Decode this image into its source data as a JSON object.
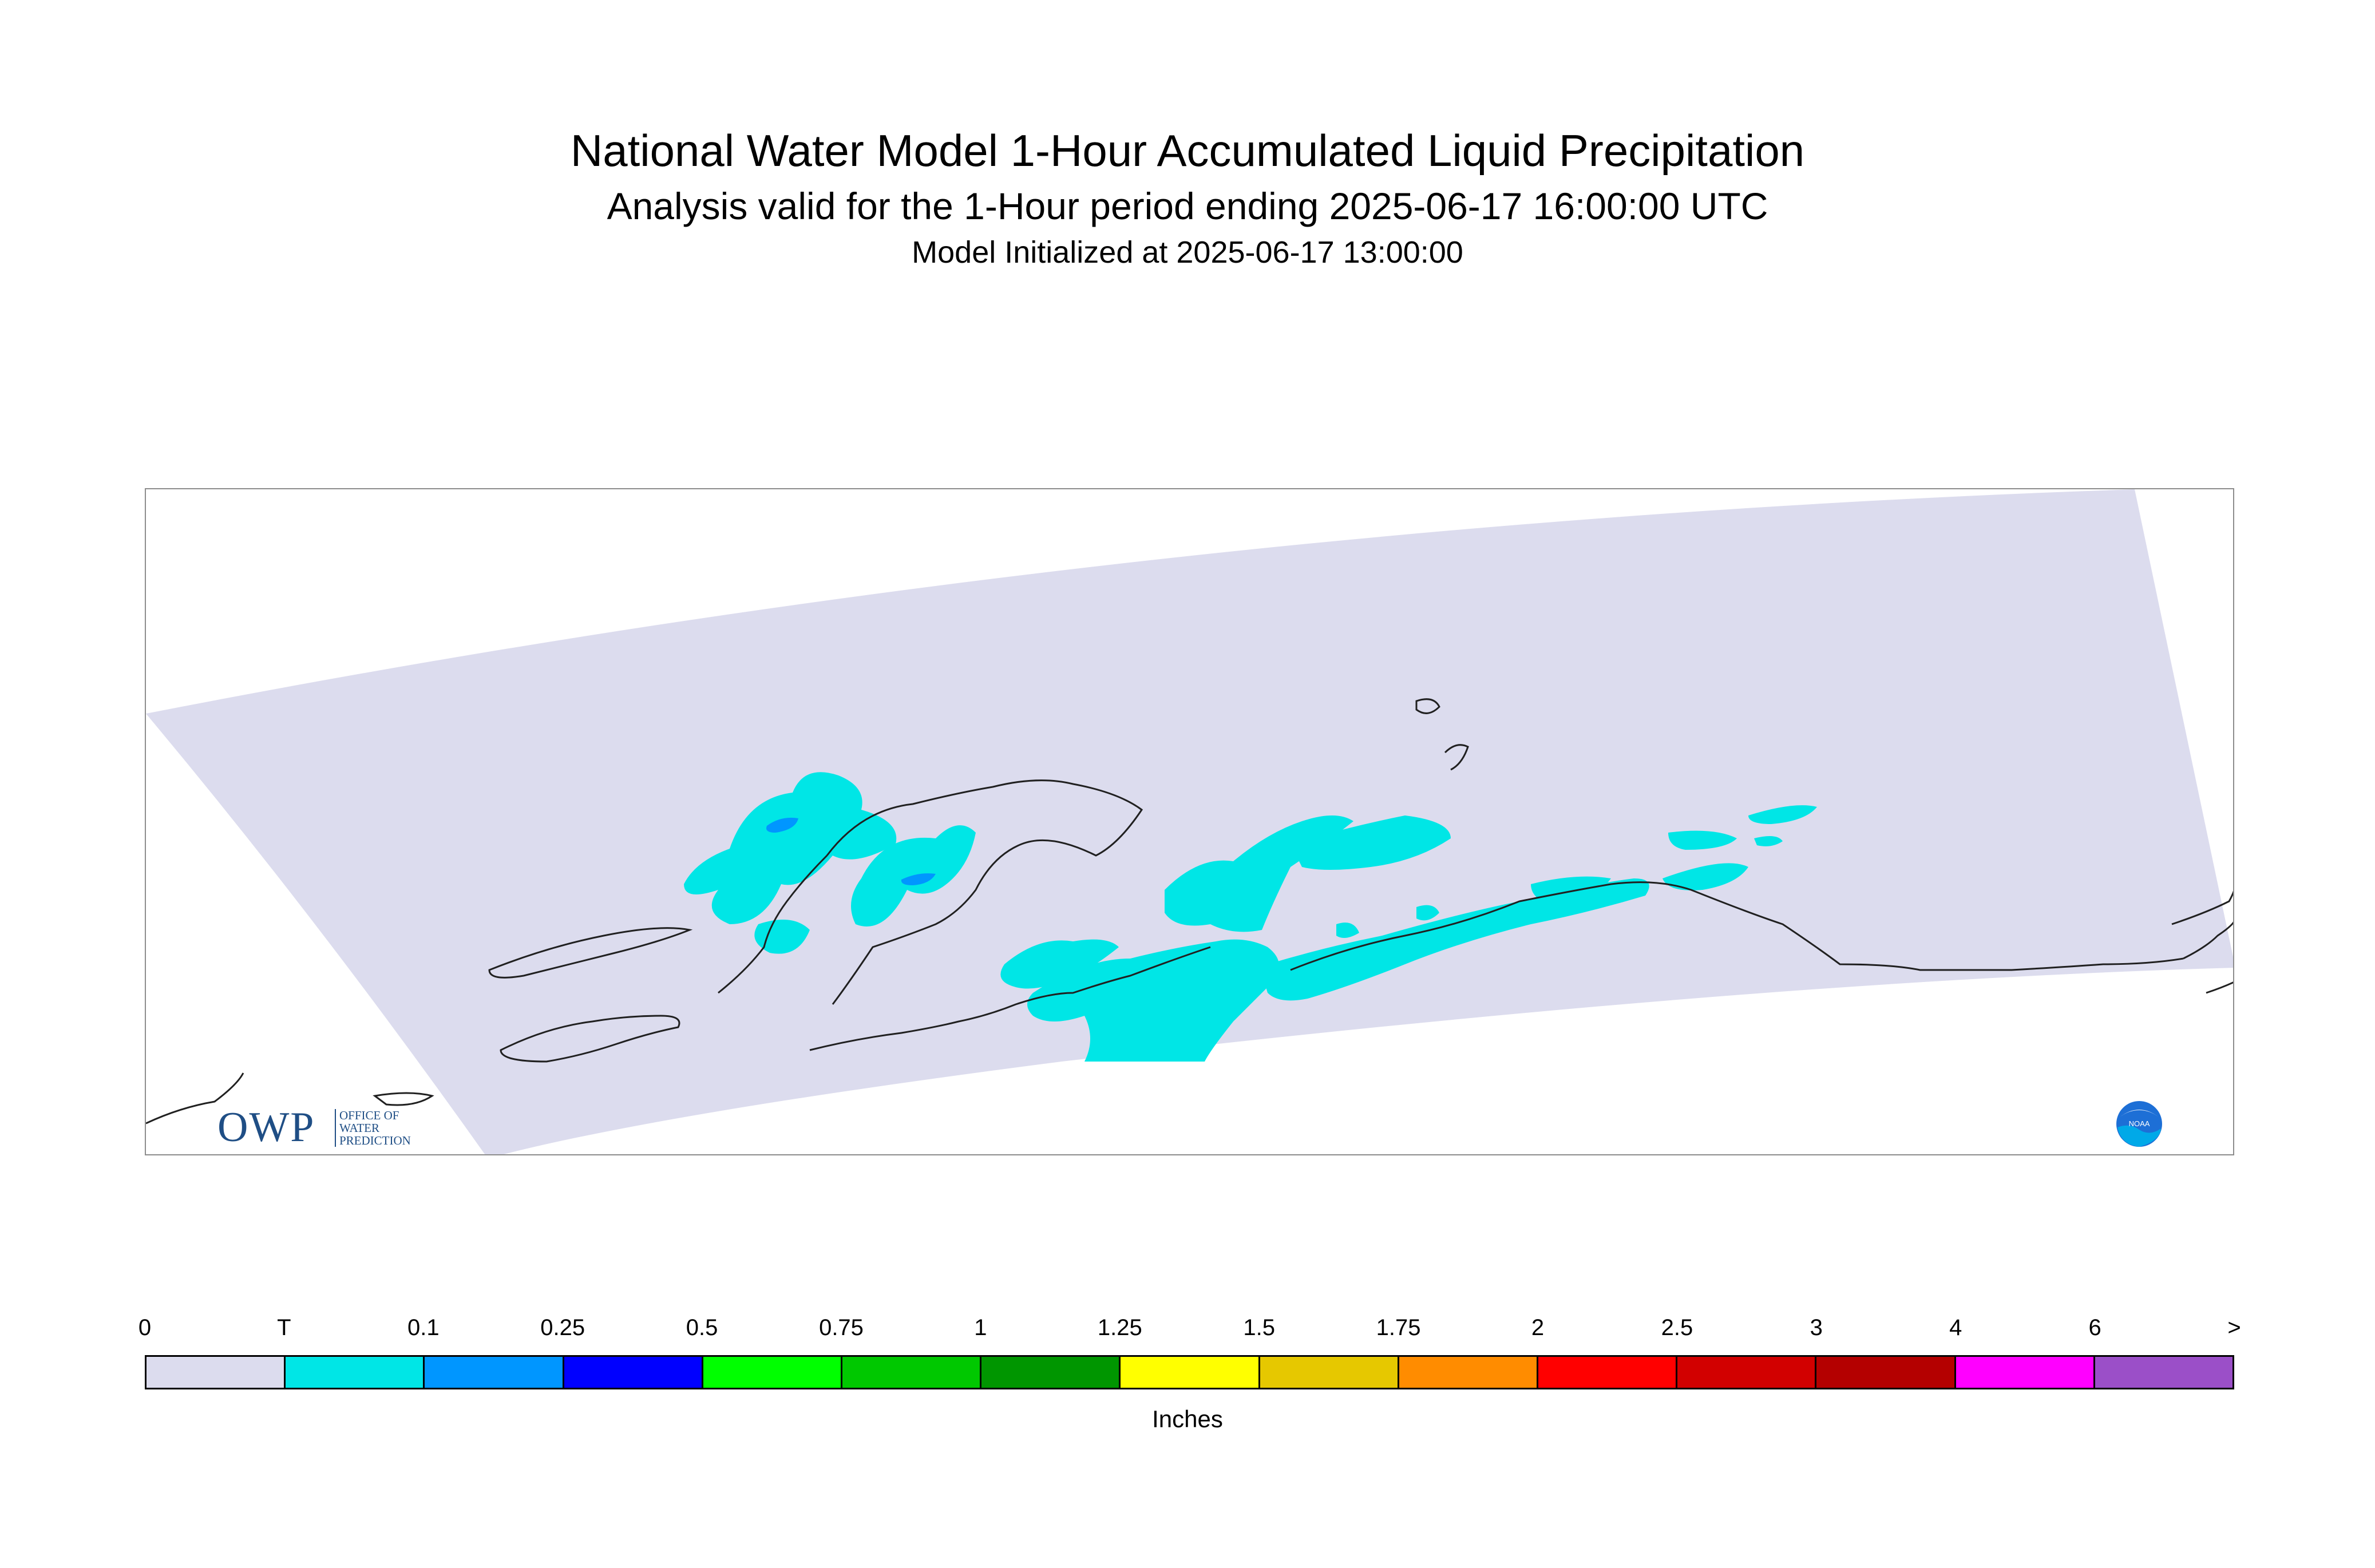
{
  "title": "National Water Model 1-Hour Accumulated Liquid Precipitation",
  "subtitle": "Analysis valid for the 1-Hour period ending 2025-06-17 16:00:00 UTC",
  "init_line": "Model Initialized at 2025-06-17 13:00:00",
  "logos": {
    "owp_mark": "OWP",
    "owp_text": "OFFICE OF\nWATER\nPREDICTION",
    "noaa_text": "NOAA"
  },
  "colors": {
    "domain": "#dcdcee",
    "trace": "#00e6e6",
    "light_precip": "#0096ff",
    "coast": "#202020"
  },
  "legend": {
    "units": "Inches",
    "labels": [
      "0",
      "T",
      "0.1",
      "0.25",
      "0.5",
      "0.75",
      "1",
      "1.25",
      "1.5",
      "1.75",
      "2",
      "2.5",
      "3",
      "4",
      "6",
      ">"
    ],
    "colors": [
      "#dcdcee",
      "#00e6e6",
      "#0096ff",
      "#0000ff",
      "#00ff00",
      "#00c800",
      "#009600",
      "#ffff00",
      "#e6c800",
      "#ff8c00",
      "#ff0000",
      "#d20000",
      "#b40000",
      "#ff00ff",
      "#9b4fc8"
    ]
  }
}
